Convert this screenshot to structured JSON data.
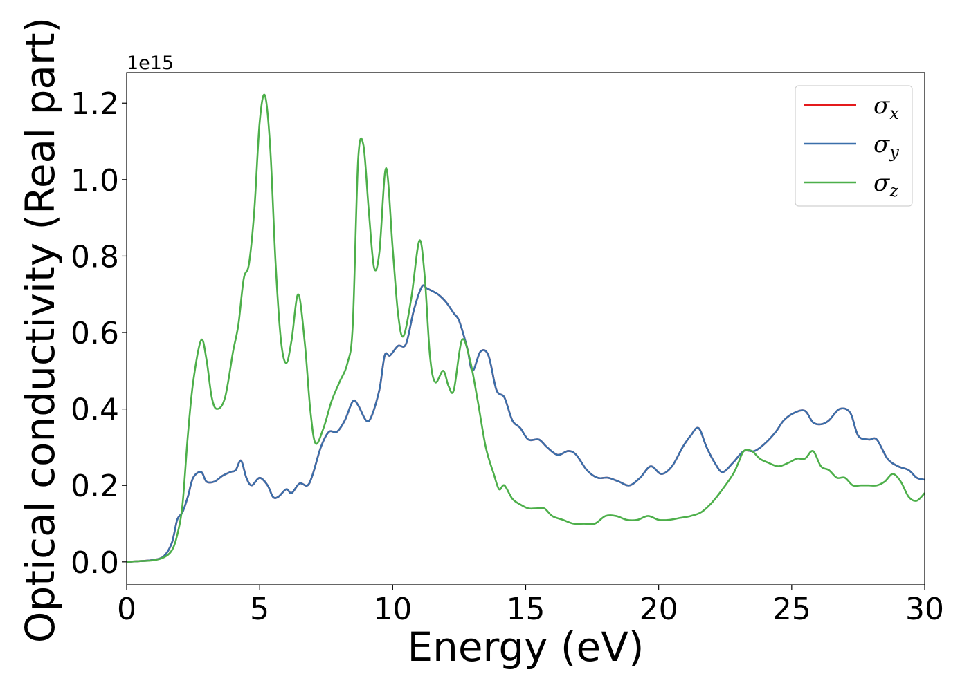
{
  "chart_data": {
    "type": "line",
    "title": "",
    "xlabel": "Energy (eV)",
    "ylabel": "Optical conductivity (Real part)",
    "y_offset_label": "1e15",
    "y_multiplier": 1000000000000000.0,
    "xlim": [
      0,
      30
    ],
    "ylim": [
      -0.06,
      1.28
    ],
    "xticks": [
      0,
      5,
      10,
      15,
      20,
      25,
      30
    ],
    "xtick_labels": [
      "0",
      "5",
      "10",
      "15",
      "20",
      "25",
      "30"
    ],
    "yticks": [
      0.0,
      0.2,
      0.4,
      0.6,
      0.8,
      1.0,
      1.2
    ],
    "ytick_labels": [
      "0.0",
      "0.2",
      "0.4",
      "0.6",
      "0.8",
      "1.0",
      "1.2"
    ],
    "grid": false,
    "legend_position": "top-right",
    "series": [
      {
        "name": "σx",
        "legend_symbol": "σ",
        "legend_sub": "x",
        "color": "#e41a1c",
        "x": [
          0,
          0.5,
          1.0,
          1.4,
          1.7,
          1.9,
          2.1,
          2.3,
          2.5,
          2.8,
          3.0,
          3.3,
          3.6,
          3.9,
          4.1,
          4.3,
          4.5,
          4.7,
          5.0,
          5.3,
          5.5,
          5.7,
          6.0,
          6.2,
          6.5,
          6.8,
          7.0,
          7.3,
          7.6,
          7.9,
          8.2,
          8.5,
          8.7,
          9.0,
          9.2,
          9.5,
          9.7,
          9.9,
          10.2,
          10.5,
          10.8,
          11.1,
          11.3,
          11.7,
          12.0,
          12.3,
          12.5,
          12.8,
          13.0,
          13.3,
          13.6,
          13.9,
          14.2,
          14.5,
          14.8,
          15.1,
          15.5,
          15.8,
          16.2,
          16.6,
          16.9,
          17.3,
          17.7,
          18.1,
          18.5,
          18.9,
          19.3,
          19.7,
          20.1,
          20.5,
          20.9,
          21.2,
          21.5,
          21.8,
          22.1,
          22.4,
          22.8,
          23.2,
          23.6,
          24.0,
          24.4,
          24.7,
          25.1,
          25.5,
          25.8,
          26.1,
          26.4,
          26.8,
          27.2,
          27.5,
          27.9,
          28.2,
          28.6,
          29.0,
          29.4,
          29.7,
          30.0
        ],
        "y": [
          0.0,
          0.002,
          0.005,
          0.015,
          0.05,
          0.11,
          0.13,
          0.17,
          0.22,
          0.235,
          0.21,
          0.21,
          0.225,
          0.235,
          0.24,
          0.265,
          0.22,
          0.2,
          0.22,
          0.2,
          0.17,
          0.17,
          0.19,
          0.18,
          0.205,
          0.2,
          0.23,
          0.3,
          0.34,
          0.34,
          0.37,
          0.42,
          0.41,
          0.37,
          0.38,
          0.45,
          0.54,
          0.54,
          0.565,
          0.57,
          0.66,
          0.72,
          0.715,
          0.7,
          0.68,
          0.65,
          0.63,
          0.56,
          0.5,
          0.55,
          0.54,
          0.45,
          0.43,
          0.37,
          0.35,
          0.32,
          0.32,
          0.3,
          0.28,
          0.29,
          0.28,
          0.24,
          0.22,
          0.22,
          0.21,
          0.2,
          0.22,
          0.25,
          0.23,
          0.25,
          0.3,
          0.33,
          0.35,
          0.3,
          0.26,
          0.235,
          0.26,
          0.29,
          0.29,
          0.31,
          0.34,
          0.37,
          0.39,
          0.395,
          0.365,
          0.36,
          0.37,
          0.4,
          0.39,
          0.33,
          0.32,
          0.32,
          0.27,
          0.25,
          0.24,
          0.22,
          0.215
        ]
      },
      {
        "name": "σy",
        "legend_symbol": "σ",
        "legend_sub": "y",
        "color": "#3a6faa",
        "x": [
          0,
          0.5,
          1.0,
          1.4,
          1.7,
          1.9,
          2.1,
          2.3,
          2.5,
          2.8,
          3.0,
          3.3,
          3.6,
          3.9,
          4.1,
          4.3,
          4.5,
          4.7,
          5.0,
          5.3,
          5.5,
          5.7,
          6.0,
          6.2,
          6.5,
          6.8,
          7.0,
          7.3,
          7.6,
          7.9,
          8.2,
          8.5,
          8.7,
          9.0,
          9.2,
          9.5,
          9.7,
          9.9,
          10.2,
          10.5,
          10.8,
          11.1,
          11.3,
          11.7,
          12.0,
          12.3,
          12.5,
          12.8,
          13.0,
          13.3,
          13.6,
          13.9,
          14.2,
          14.5,
          14.8,
          15.1,
          15.5,
          15.8,
          16.2,
          16.6,
          16.9,
          17.3,
          17.7,
          18.1,
          18.5,
          18.9,
          19.3,
          19.7,
          20.1,
          20.5,
          20.9,
          21.2,
          21.5,
          21.8,
          22.1,
          22.4,
          22.8,
          23.2,
          23.6,
          24.0,
          24.4,
          24.7,
          25.1,
          25.5,
          25.8,
          26.1,
          26.4,
          26.8,
          27.2,
          27.5,
          27.9,
          28.2,
          28.6,
          29.0,
          29.4,
          29.7,
          30.0
        ],
        "y": [
          0.0,
          0.002,
          0.005,
          0.015,
          0.05,
          0.11,
          0.13,
          0.17,
          0.22,
          0.235,
          0.21,
          0.21,
          0.225,
          0.235,
          0.24,
          0.265,
          0.22,
          0.2,
          0.22,
          0.2,
          0.17,
          0.17,
          0.19,
          0.18,
          0.205,
          0.2,
          0.23,
          0.3,
          0.34,
          0.34,
          0.37,
          0.42,
          0.41,
          0.37,
          0.38,
          0.45,
          0.54,
          0.54,
          0.565,
          0.57,
          0.66,
          0.72,
          0.715,
          0.7,
          0.68,
          0.65,
          0.63,
          0.56,
          0.5,
          0.55,
          0.54,
          0.45,
          0.43,
          0.37,
          0.35,
          0.32,
          0.32,
          0.3,
          0.28,
          0.29,
          0.28,
          0.24,
          0.22,
          0.22,
          0.21,
          0.2,
          0.22,
          0.25,
          0.23,
          0.25,
          0.3,
          0.33,
          0.35,
          0.3,
          0.26,
          0.235,
          0.26,
          0.29,
          0.29,
          0.31,
          0.34,
          0.37,
          0.39,
          0.395,
          0.365,
          0.36,
          0.37,
          0.4,
          0.39,
          0.33,
          0.32,
          0.32,
          0.27,
          0.25,
          0.24,
          0.22,
          0.215
        ]
      },
      {
        "name": "σz",
        "legend_symbol": "σ",
        "legend_sub": "z",
        "color": "#4daf4a",
        "x": [
          0,
          0.5,
          1.0,
          1.4,
          1.7,
          1.9,
          2.1,
          2.3,
          2.5,
          2.8,
          3.0,
          3.2,
          3.4,
          3.7,
          4.0,
          4.2,
          4.4,
          4.6,
          4.8,
          5.0,
          5.2,
          5.4,
          5.6,
          5.8,
          6.0,
          6.2,
          6.45,
          6.7,
          6.9,
          7.1,
          7.4,
          7.7,
          8.0,
          8.3,
          8.5,
          8.7,
          8.9,
          9.1,
          9.3,
          9.5,
          9.75,
          10.0,
          10.2,
          10.4,
          10.7,
          11.0,
          11.2,
          11.4,
          11.6,
          11.9,
          12.1,
          12.3,
          12.6,
          12.9,
          13.2,
          13.5,
          13.8,
          14.0,
          14.2,
          14.5,
          14.8,
          15.1,
          15.4,
          15.7,
          16.0,
          16.4,
          16.8,
          17.2,
          17.6,
          18.0,
          18.4,
          18.8,
          19.2,
          19.6,
          20.0,
          20.4,
          20.8,
          21.2,
          21.6,
          22.0,
          22.4,
          22.8,
          23.0,
          23.2,
          23.5,
          23.8,
          24.1,
          24.5,
          24.9,
          25.2,
          25.5,
          25.8,
          26.1,
          26.4,
          26.7,
          27.0,
          27.3,
          27.6,
          27.9,
          28.2,
          28.5,
          28.8,
          29.1,
          29.4,
          29.7,
          30.0
        ],
        "y": [
          0.0,
          0.002,
          0.004,
          0.012,
          0.03,
          0.07,
          0.15,
          0.33,
          0.47,
          0.58,
          0.53,
          0.43,
          0.4,
          0.43,
          0.55,
          0.62,
          0.74,
          0.78,
          0.92,
          1.15,
          1.22,
          1.08,
          0.78,
          0.58,
          0.52,
          0.58,
          0.7,
          0.57,
          0.4,
          0.31,
          0.35,
          0.42,
          0.47,
          0.52,
          0.62,
          1.05,
          1.09,
          0.92,
          0.77,
          0.81,
          1.03,
          0.82,
          0.65,
          0.59,
          0.69,
          0.84,
          0.75,
          0.54,
          0.47,
          0.5,
          0.46,
          0.45,
          0.58,
          0.53,
          0.42,
          0.3,
          0.23,
          0.19,
          0.2,
          0.165,
          0.15,
          0.14,
          0.14,
          0.14,
          0.12,
          0.11,
          0.1,
          0.1,
          0.1,
          0.12,
          0.12,
          0.11,
          0.11,
          0.12,
          0.11,
          0.11,
          0.115,
          0.12,
          0.13,
          0.155,
          0.19,
          0.23,
          0.26,
          0.29,
          0.29,
          0.27,
          0.26,
          0.25,
          0.26,
          0.27,
          0.27,
          0.29,
          0.25,
          0.24,
          0.22,
          0.22,
          0.2,
          0.2,
          0.2,
          0.2,
          0.21,
          0.23,
          0.21,
          0.17,
          0.16,
          0.18
        ]
      }
    ]
  }
}
